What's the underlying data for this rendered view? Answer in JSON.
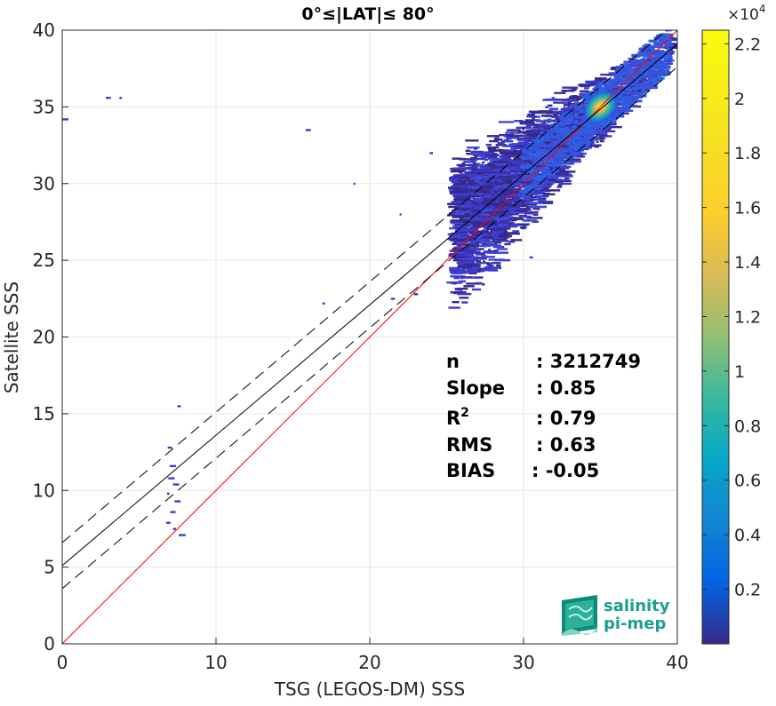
{
  "chart_data": {
    "type": "heatmap",
    "title": "0°≤|LAT|≤ 80°",
    "xlabel": "TSG (LEGOS-DM) SSS",
    "ylabel": "Satellite SSS",
    "xlim": [
      0,
      40
    ],
    "ylim": [
      0,
      40
    ],
    "xticks": [
      "0",
      "10",
      "20",
      "30",
      "40"
    ],
    "yticks": [
      "0",
      "5",
      "10",
      "15",
      "20",
      "25",
      "30",
      "35",
      "40"
    ],
    "grid": true,
    "colorbar": {
      "exponent_label": "×10",
      "exponent_power": "4",
      "range": [
        0,
        22500
      ],
      "ticks": [
        "0.2",
        "0.4",
        "0.6",
        "0.8",
        "1",
        "1.2",
        "1.4",
        "1.6",
        "1.8",
        "2",
        "2.2"
      ]
    },
    "reference_lines": [
      {
        "kind": "identity",
        "slope": 1,
        "intercept": 0,
        "color": "#ff0000"
      },
      {
        "kind": "fit",
        "slope": 0.85,
        "intercept": 5.1,
        "style": "solid",
        "color": "#000000"
      },
      {
        "kind": "fit_plus",
        "slope": 0.85,
        "intercept": 6.6,
        "style": "dashed",
        "color": "#000000"
      },
      {
        "kind": "fit_minus",
        "slope": 0.85,
        "intercept": 3.6,
        "style": "dashed",
        "color": "#000000"
      }
    ],
    "stats": [
      {
        "label": "n",
        "value": ": 3212749"
      },
      {
        "label": "Slope",
        "value": ": 0.85"
      },
      {
        "label": "R",
        "sup": "2",
        "value": ": 0.79"
      },
      {
        "label": "RMS",
        "value": ": 0.63"
      },
      {
        "label": "BIAS",
        "value": ": -0.05"
      }
    ],
    "peak": {
      "x": 35,
      "y": 35
    }
  },
  "logo": {
    "line1": "salinity",
    "line2": "pi-mep"
  }
}
